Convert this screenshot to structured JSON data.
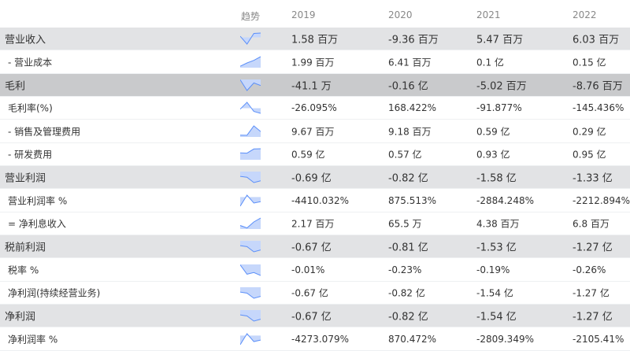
{
  "header": {
    "trend": "趋势",
    "years": [
      "2019",
      "2020",
      "2021",
      "2022"
    ]
  },
  "colors": {
    "line": "#5b8ff9",
    "fill": "#c6d7fb",
    "major_bg": "#e2e3e5",
    "dark_bg": "#c9cacc"
  },
  "rows": [
    {
      "label": "营业收入",
      "style": "major",
      "values": [
        "1.58 百万",
        "-9.36 百万",
        "5.47 百万",
        "6.03 百万"
      ],
      "trend": [
        1.58,
        -9.36,
        5.47,
        6.03
      ]
    },
    {
      "label": "- 营业成本",
      "style": "sub",
      "values": [
        "1.99 百万",
        "6.41 百万",
        "0.1 亿",
        "0.15 亿"
      ],
      "trend": [
        1.99,
        6.41,
        10,
        15
      ]
    },
    {
      "label": "毛利",
      "style": "dark",
      "values": [
        "-41.1 万",
        "-0.16 亿",
        "-5.02 百万",
        "-8.76 百万"
      ],
      "trend": [
        -0.411,
        -16,
        -5.02,
        -8.76
      ]
    },
    {
      "label": "毛利率(%)",
      "style": "sub",
      "values": [
        "-26.095%",
        "168.422%",
        "-91.877%",
        "-145.436%"
      ],
      "trend": [
        -26.095,
        168.422,
        -91.877,
        -145.436
      ]
    },
    {
      "label": "- 销售及管理费用",
      "style": "sub",
      "values": [
        "9.67 百万",
        "9.18 百万",
        "0.59 亿",
        "0.29 亿"
      ],
      "trend": [
        9.67,
        9.18,
        59,
        29
      ]
    },
    {
      "label": "- 研发费用",
      "style": "sub",
      "values": [
        "0.59 亿",
        "0.57 亿",
        "0.93 亿",
        "0.95 亿"
      ],
      "trend": [
        0.59,
        0.57,
        0.93,
        0.95
      ]
    },
    {
      "label": "营业利润",
      "style": "major",
      "values": [
        "-0.69 亿",
        "-0.82 亿",
        "-1.58 亿",
        "-1.33 亿"
      ],
      "trend": [
        -0.69,
        -0.82,
        -1.58,
        -1.33
      ]
    },
    {
      "label": "营业利润率 %",
      "style": "sub",
      "values": [
        "-4410.032%",
        "875.513%",
        "-2884.248%",
        "-2212.894%"
      ],
      "trend": [
        -4410.032,
        875.513,
        -2884.248,
        -2212.894
      ]
    },
    {
      "label": "= 净利息收入",
      "style": "sub",
      "values": [
        "2.17 百万",
        "65.5 万",
        "4.38 百万",
        "6.8 百万"
      ],
      "trend": [
        2.17,
        0.655,
        4.38,
        6.8
      ]
    },
    {
      "label": "税前利润",
      "style": "major",
      "values": [
        "-0.67 亿",
        "-0.81 亿",
        "-1.53 亿",
        "-1.27 亿"
      ],
      "trend": [
        -0.67,
        -0.81,
        -1.53,
        -1.27
      ]
    },
    {
      "label": "税率 %",
      "style": "sub",
      "values": [
        "-0.01%",
        "-0.23%",
        "-0.19%",
        "-0.26%"
      ],
      "trend": [
        -0.01,
        -0.23,
        -0.19,
        -0.26
      ]
    },
    {
      "label": "净利润(持续经营业务)",
      "style": "sub",
      "values": [
        "-0.67 亿",
        "-0.82 亿",
        "-1.54 亿",
        "-1.27 亿"
      ],
      "trend": [
        -0.67,
        -0.82,
        -1.54,
        -1.27
      ]
    },
    {
      "label": "净利润",
      "style": "major",
      "values": [
        "-0.67 亿",
        "-0.82 亿",
        "-1.54 亿",
        "-1.27 亿"
      ],
      "trend": [
        -0.67,
        -0.82,
        -1.54,
        -1.27
      ]
    },
    {
      "label": "净利润率 %",
      "style": "sub",
      "values": [
        "-4273.079%",
        "870.472%",
        "-2809.349%",
        "-2105.41%"
      ],
      "trend": [
        -4273.079,
        870.472,
        -2809.349,
        -2105.41
      ]
    }
  ]
}
